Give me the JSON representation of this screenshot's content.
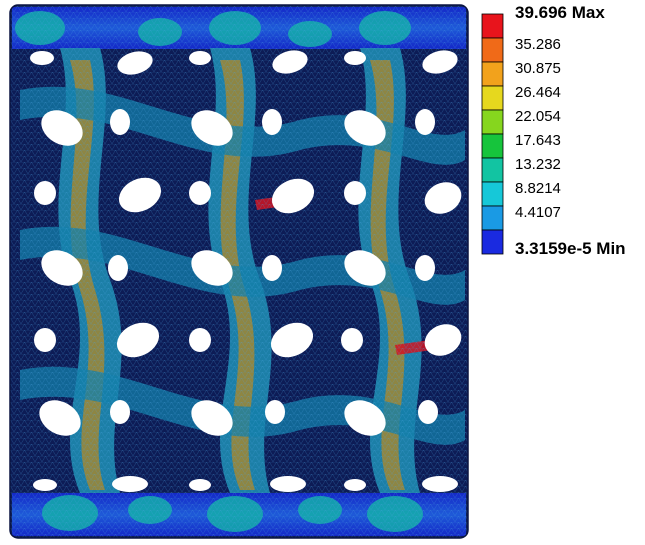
{
  "legend": {
    "max_label": "39.696 Max",
    "min_label": "3.3159e-5 Min",
    "levels": [
      {
        "label": "39.696 Max",
        "color": "#e8141c"
      },
      {
        "label": "35.286",
        "color": "#f06a18"
      },
      {
        "label": "30.875",
        "color": "#f2a21c"
      },
      {
        "label": "26.464",
        "color": "#e6d81e"
      },
      {
        "label": "22.054",
        "color": "#86d61e"
      },
      {
        "label": "17.643",
        "color": "#16c43c"
      },
      {
        "label": "13.232",
        "color": "#12c4a2"
      },
      {
        "label": "8.8214",
        "color": "#16c8d8"
      },
      {
        "label": "4.4107",
        "color": "#1a9ae4"
      },
      {
        "label": "3.3159e-5 Min",
        "color": "#1a2ae0"
      }
    ],
    "intermediate_labels": [
      "35.286",
      "30.875",
      "26.464",
      "22.054",
      "17.643",
      "13.232",
      "8.8214",
      "4.4107"
    ]
  },
  "colors": {
    "mesh_background": "#0e1a5a",
    "low_stress": "#1a2ae0",
    "mid_stress": "#12b4a8",
    "high_stress": "#d49a1e",
    "peak_stress": "#e8141c",
    "hole": "#ffffff"
  }
}
